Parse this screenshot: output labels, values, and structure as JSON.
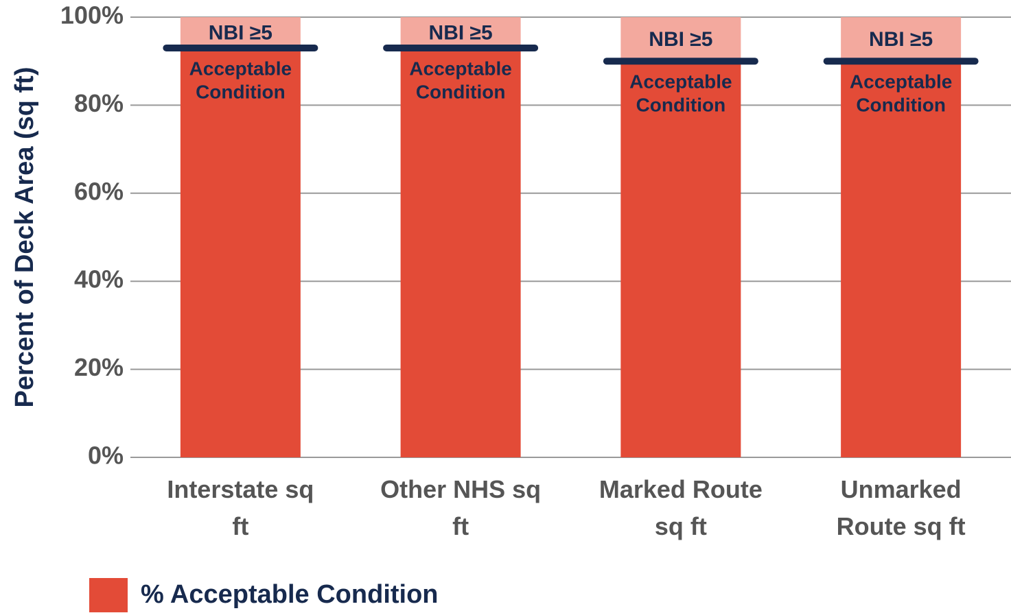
{
  "chart_data": {
    "type": "bar",
    "stacked": true,
    "ylabel": "Percent of Deck Area (sq ft)",
    "categories": [
      "Interstate sq ft",
      "Other NHS sq ft",
      "Marked Route sq ft",
      "Unmarked Route sq ft"
    ],
    "series": [
      {
        "name": "% Acceptable Condition",
        "color": "#e34b37",
        "values": [
          93,
          93,
          90,
          90
        ],
        "labels": [
          [
            "Acceptable",
            "Condition"
          ],
          [
            "Acceptable",
            "Condition"
          ],
          [
            "Acceptable",
            "Condition"
          ],
          [
            "Acceptable",
            "Condition"
          ]
        ]
      },
      {
        "color": "#f3a99e",
        "values": [
          7,
          7,
          10,
          10
        ],
        "labels": [
          "NBI ≥5",
          "NBI ≥5",
          "NBI ≥5",
          "NBI ≥5"
        ]
      }
    ],
    "threshold_color": "#172a4e",
    "ylim": [
      0,
      100
    ],
    "yticks": [
      {
        "value": 0,
        "label": "0%"
      },
      {
        "value": 20,
        "label": "20%"
      },
      {
        "value": 40,
        "label": "40%"
      },
      {
        "value": 60,
        "label": "60%"
      },
      {
        "value": 80,
        "label": "80%"
      },
      {
        "value": 100,
        "label": "100%"
      }
    ],
    "grid": true,
    "legend": "bottom-left"
  }
}
